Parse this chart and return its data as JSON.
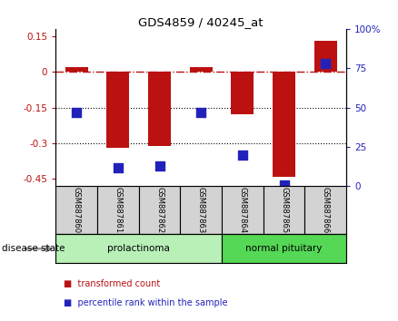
{
  "title": "GDS4859 / 40245_at",
  "samples": [
    "GSM887860",
    "GSM887861",
    "GSM887862",
    "GSM887863",
    "GSM887864",
    "GSM887865",
    "GSM887866"
  ],
  "transformed_count": [
    0.02,
    -0.32,
    -0.31,
    0.02,
    -0.18,
    -0.44,
    0.13
  ],
  "percentile_rank": [
    47,
    12,
    13,
    47,
    20,
    1,
    78
  ],
  "ylim_left": [
    -0.48,
    0.18
  ],
  "ylim_right": [
    0,
    100
  ],
  "yticks_left": [
    0.15,
    0.0,
    -0.15,
    -0.3,
    -0.45
  ],
  "ytick_labels_left": [
    "0.15",
    "0",
    "-0.15",
    "-0.3",
    "-0.45"
  ],
  "yticks_right": [
    100,
    75,
    50,
    25,
    0
  ],
  "ytick_labels_right": [
    "100%",
    "75",
    "50",
    "25",
    "0"
  ],
  "groups": [
    {
      "label": "prolactinoma",
      "start": 0,
      "end": 3,
      "color": "#b8f0b8"
    },
    {
      "label": "normal pituitary",
      "start": 4,
      "end": 6,
      "color": "#55d855"
    }
  ],
  "bar_color": "#bb1111",
  "dot_color": "#2222bb",
  "hline_y": 0.0,
  "dotted_lines": [
    -0.15,
    -0.3
  ],
  "disease_state_label": "disease state",
  "legend_items": [
    {
      "label": "transformed count",
      "color": "#bb1111"
    },
    {
      "label": "percentile rank within the sample",
      "color": "#2222bb"
    }
  ],
  "bar_width": 0.55,
  "dot_size": 45,
  "bg_color": "#ffffff",
  "grid_color": "#aaaaaa"
}
